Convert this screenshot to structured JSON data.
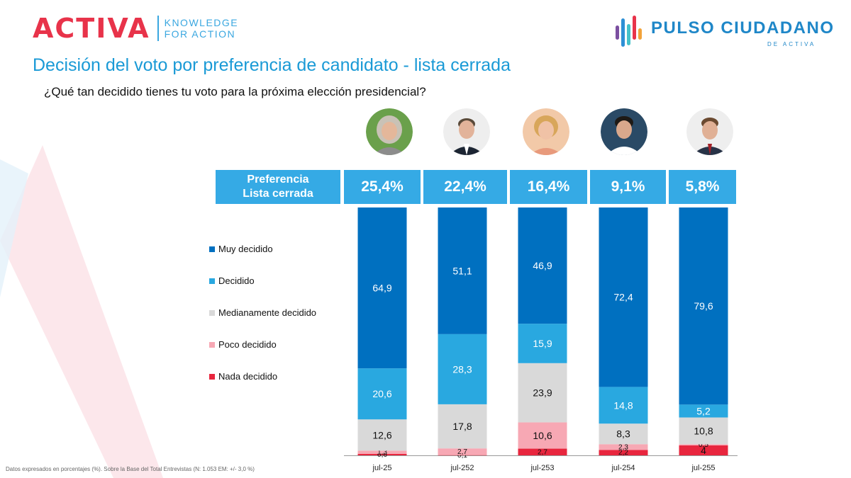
{
  "header": {
    "brand": "ACTIVA",
    "tagline_line1": "KNOWLEDGE",
    "tagline_line2": "FOR ACTION",
    "pulso_name": "PULSO CIUDADANO",
    "pulso_sub": "DE ACTIVA"
  },
  "title": "Decisión del voto por preferencia de candidato - lista cerrada",
  "subtitle": "¿Qué tan decidido tienes tu voto para la próxima elección presidencial?",
  "preference_row": {
    "label_line1": "Preferencia",
    "label_line2": "Lista cerrada",
    "values": [
      "25,4%",
      "22,4%",
      "16,4%",
      "9,1%",
      "5,8%"
    ]
  },
  "candidates": [
    {
      "name": "candidate-1-photo"
    },
    {
      "name": "candidate-2-photo"
    },
    {
      "name": "candidate-3-photo"
    },
    {
      "name": "candidate-4-photo"
    },
    {
      "name": "candidate-5-photo"
    }
  ],
  "colors": {
    "muy_decidido": "#0070c0",
    "decidido": "#29a8e0",
    "medianamente": "#d9d9d9",
    "poco": "#f7a8b4",
    "nada": "#e8263e",
    "header_bg": "#35aae5"
  },
  "chart_data": {
    "type": "bar",
    "stacked": true,
    "categories": [
      "jul-25",
      "jul-252",
      "jul-253",
      "jul-254",
      "jul-255"
    ],
    "series": [
      {
        "name": "Nada decidido",
        "color": "#e8263e",
        "values": [
          0.6,
          0.1,
          2.7,
          2.2,
          4
        ],
        "labels": [
          "0,6",
          "0,1",
          "2,7",
          "2,2",
          "4"
        ]
      },
      {
        "name": "Poco decidido",
        "color": "#f7a8b4",
        "values": [
          1.3,
          2.7,
          10.6,
          2.3,
          0.5
        ],
        "labels": [
          "1,3",
          "2,7",
          "10,6",
          "2,3",
          "0,5"
        ]
      },
      {
        "name": "Medianamente decidido",
        "color": "#d9d9d9",
        "values": [
          12.6,
          17.8,
          23.9,
          8.3,
          10.8
        ],
        "labels": [
          "12,6",
          "17,8",
          "23,9",
          "8,3",
          "10,8"
        ]
      },
      {
        "name": "Decidido",
        "color": "#29a8e0",
        "values": [
          20.6,
          28.3,
          15.9,
          14.8,
          5.2
        ],
        "labels": [
          "20,6",
          "28,3",
          "15,9",
          "14,8",
          "5,2"
        ]
      },
      {
        "name": "Muy decidido",
        "color": "#0070c0",
        "values": [
          64.9,
          51.1,
          46.9,
          72.4,
          79.6
        ],
        "labels": [
          "64,9",
          "51,1",
          "46,9",
          "72,4",
          "79,6"
        ]
      }
    ],
    "legend": [
      "Muy decidido",
      "Decidido",
      "Medianamente decidido",
      "Poco decidido",
      "Nada decidido"
    ],
    "ylim": [
      0,
      100
    ],
    "legend_position": "left"
  },
  "footnote": "Datos expresados en porcentajes (%). Sobre la Base del Total Entrevistas (N: 1.053  EM: +/- 3,0 %)"
}
